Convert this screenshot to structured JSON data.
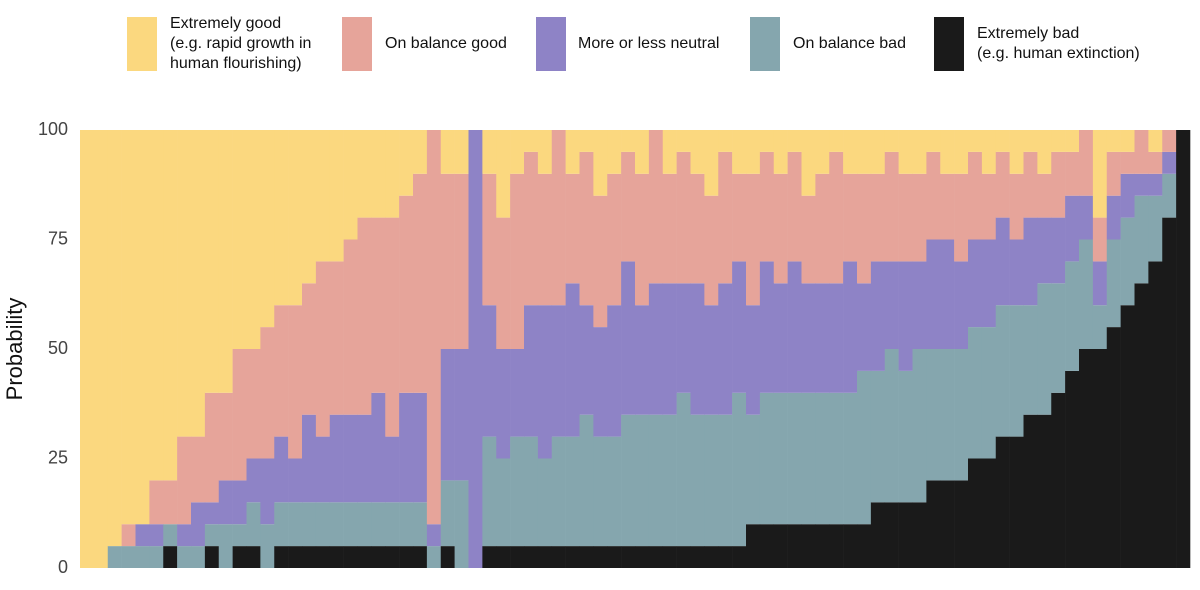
{
  "chart_data": {
    "type": "stacked_bar",
    "y_label": "Probability",
    "ylim": [
      0,
      100
    ],
    "yticks": [
      0,
      25,
      50,
      75,
      100
    ],
    "grid": false,
    "categories": [
      null,
      null,
      null,
      null,
      null,
      null,
      null,
      null,
      null,
      null,
      null,
      null,
      null,
      null,
      null,
      null,
      null,
      null,
      null,
      null,
      null,
      null,
      null,
      null,
      null,
      null,
      null,
      null,
      null,
      null,
      null,
      null,
      null,
      null,
      null,
      null,
      null,
      null,
      null,
      null,
      null,
      null,
      null,
      null,
      null,
      null,
      null,
      null,
      null,
      null,
      null,
      null,
      null,
      null,
      null,
      null,
      null,
      null,
      null,
      null,
      null,
      null,
      null,
      null,
      null,
      null,
      null,
      null,
      null,
      null,
      null,
      null,
      null,
      null,
      null,
      null,
      null,
      null,
      null,
      null
    ],
    "series": [
      {
        "name": "Extremely good\n(e.g. rapid growth in\nhuman flourishing)",
        "color": "#fbd87f",
        "values": [
          100,
          100,
          95,
          90,
          90,
          80,
          80,
          70,
          70,
          60,
          60,
          50,
          50,
          45,
          40,
          40,
          35,
          30,
          30,
          25,
          20,
          20,
          20,
          15,
          10,
          0,
          10,
          10,
          0,
          10,
          20,
          10,
          5,
          10,
          0,
          10,
          5,
          15,
          10,
          5,
          10,
          0,
          10,
          5,
          10,
          15,
          5,
          10,
          10,
          5,
          10,
          5,
          15,
          10,
          5,
          10,
          10,
          10,
          5,
          10,
          10,
          5,
          10,
          10,
          5,
          10,
          5,
          10,
          5,
          10,
          5,
          5,
          0,
          20,
          5,
          5,
          0,
          5,
          0,
          0
        ]
      },
      {
        "name": "On balance good",
        "color": "#e6a49a",
        "values": [
          0,
          0,
          0,
          5,
          0,
          10,
          10,
          20,
          15,
          25,
          20,
          30,
          25,
          30,
          30,
          35,
          30,
          40,
          35,
          40,
          45,
          40,
          50,
          45,
          50,
          90,
          40,
          40,
          0,
          30,
          30,
          40,
          35,
          30,
          40,
          25,
          35,
          30,
          30,
          25,
          30,
          35,
          25,
          30,
          25,
          25,
          30,
          20,
          30,
          25,
          25,
          25,
          20,
          25,
          30,
          20,
          25,
          20,
          25,
          20,
          20,
          20,
          15,
          20,
          20,
          15,
          15,
          15,
          15,
          10,
          15,
          10,
          15,
          10,
          10,
          5,
          10,
          5,
          5,
          0
        ]
      },
      {
        "name": "More or less neutral",
        "color": "#8e83c6",
        "values": [
          0,
          0,
          0,
          0,
          5,
          5,
          0,
          5,
          10,
          5,
          10,
          10,
          10,
          15,
          15,
          10,
          20,
          15,
          20,
          20,
          20,
          25,
          15,
          25,
          25,
          5,
          30,
          30,
          100,
          30,
          25,
          20,
          30,
          35,
          30,
          35,
          25,
          25,
          30,
          35,
          25,
          30,
          30,
          25,
          30,
          25,
          30,
          30,
          25,
          30,
          25,
          30,
          25,
          25,
          25,
          30,
          20,
          25,
          20,
          25,
          20,
          25,
          25,
          20,
          20,
          20,
          20,
          15,
          20,
          15,
          15,
          15,
          10,
          10,
          10,
          10,
          5,
          5,
          5,
          0
        ]
      },
      {
        "name": "On balance bad",
        "color": "#85a6ae",
        "values": [
          0,
          0,
          5,
          5,
          5,
          5,
          5,
          5,
          5,
          5,
          10,
          5,
          10,
          10,
          10,
          10,
          10,
          10,
          10,
          10,
          10,
          10,
          10,
          10,
          10,
          5,
          15,
          20,
          0,
          25,
          20,
          25,
          25,
          20,
          25,
          25,
          30,
          25,
          25,
          30,
          30,
          30,
          30,
          35,
          30,
          30,
          30,
          35,
          25,
          30,
          30,
          30,
          30,
          30,
          30,
          30,
          35,
          30,
          35,
          30,
          35,
          30,
          30,
          30,
          30,
          30,
          30,
          30,
          25,
          30,
          25,
          25,
          25,
          10,
          20,
          20,
          20,
          15,
          10,
          0
        ]
      },
      {
        "name": "Extremely bad\n(e.g. human extinction)",
        "color": "#1a1a1a",
        "values": [
          0,
          0,
          0,
          0,
          0,
          0,
          5,
          0,
          0,
          5,
          0,
          5,
          5,
          0,
          5,
          5,
          5,
          5,
          5,
          5,
          5,
          5,
          5,
          5,
          5,
          0,
          5,
          0,
          0,
          5,
          5,
          5,
          5,
          5,
          5,
          5,
          5,
          5,
          5,
          5,
          5,
          5,
          5,
          5,
          5,
          5,
          5,
          5,
          10,
          10,
          10,
          10,
          10,
          10,
          10,
          10,
          10,
          15,
          15,
          15,
          15,
          20,
          20,
          20,
          25,
          25,
          30,
          30,
          35,
          35,
          40,
          45,
          50,
          50,
          55,
          60,
          65,
          70,
          80,
          100
        ]
      }
    ]
  }
}
